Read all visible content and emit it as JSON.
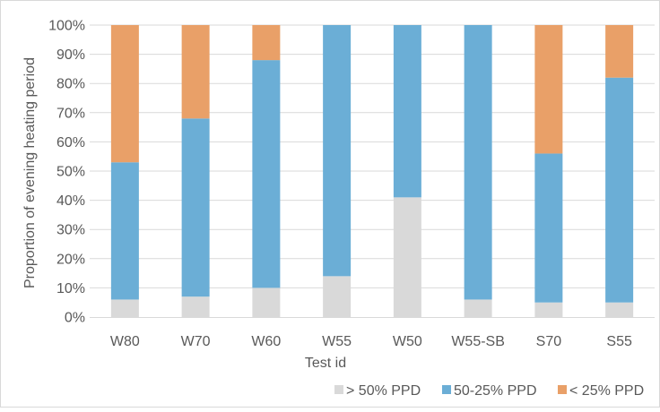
{
  "chart_data": {
    "type": "bar",
    "stacked": true,
    "percent_stacked": true,
    "categories": [
      "W80",
      "W70",
      "W60",
      "W55",
      "W50",
      "W55-SB",
      "S70",
      "S55"
    ],
    "series": [
      {
        "name": "> 50% PPD",
        "color": "#d9d9d9",
        "values": [
          6,
          7,
          10,
          14,
          41,
          6,
          5,
          5
        ]
      },
      {
        "name": "50-25% PPD",
        "color": "#6baed6",
        "values": [
          47,
          61,
          78,
          86,
          59,
          94,
          51,
          77
        ]
      },
      {
        "name": "< 25% PPD",
        "color": "#e9a068",
        "values": [
          47,
          32,
          12,
          0,
          0,
          0,
          44,
          18
        ]
      }
    ],
    "xlabel": "Test id",
    "ylabel": "Proportion of evening heating period",
    "ylim": [
      0,
      100
    ],
    "yticks": [
      "0%",
      "10%",
      "20%",
      "30%",
      "40%",
      "50%",
      "60%",
      "70%",
      "80%",
      "90%",
      "100%"
    ],
    "grid": true,
    "legend_position": "bottom-right"
  }
}
